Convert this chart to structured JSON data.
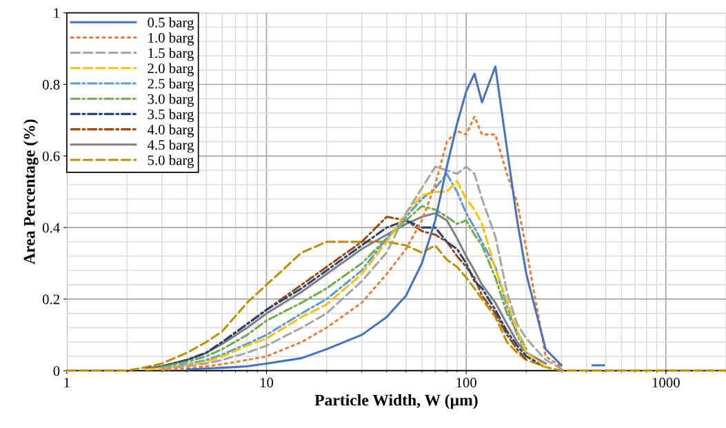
{
  "chart_data": {
    "type": "line",
    "xlabel": "Particle Width, W (µm)",
    "ylabel": "Area Percentage (%)",
    "log": "x",
    "xlim": [
      1,
      2000
    ],
    "xticks": [
      1,
      10,
      100,
      1000
    ],
    "ylim": [
      0,
      1
    ],
    "yticks": [
      0,
      0.2,
      0.4,
      0.6,
      0.8,
      1
    ],
    "grid": true,
    "legend": "top left",
    "marker": "none",
    "x": [
      1,
      2,
      2.5,
      3,
      4,
      5,
      6,
      8,
      10,
      15,
      20,
      30,
      40,
      50,
      60,
      70,
      80,
      90,
      100,
      110,
      120,
      140,
      160,
      180,
      200,
      250,
      300,
      400,
      450,
      500,
      1000,
      2000
    ],
    "series": [
      {
        "name": "0.5 barg",
        "color": "#4472c4",
        "line_style": "solid",
        "x": [
          4,
          5,
          6,
          8,
          10,
          15,
          20,
          30,
          40,
          50,
          60,
          70,
          80,
          90,
          100,
          110,
          120,
          140,
          160,
          180,
          200,
          250,
          300,
          400,
          430,
          490
        ],
        "values": [
          0.003,
          0.006,
          0.008,
          0.012,
          0.02,
          0.035,
          0.06,
          0.1,
          0.15,
          0.21,
          0.3,
          0.42,
          0.57,
          0.69,
          0.78,
          0.83,
          0.75,
          0.85,
          0.62,
          0.42,
          0.27,
          0.06,
          0.015,
          null,
          0.015,
          0.015
        ]
      },
      {
        "name": "1.0 barg",
        "color": "#ed7d31",
        "line_style": "dotted",
        "values": [
          null,
          null,
          null,
          0.002,
          0.006,
          0.012,
          0.018,
          0.03,
          0.04,
          0.08,
          0.12,
          0.19,
          0.27,
          0.34,
          0.42,
          0.52,
          0.64,
          0.67,
          0.66,
          0.71,
          0.66,
          0.66,
          0.55,
          0.47,
          0.34,
          0.04,
          0.01,
          null,
          null,
          null,
          null,
          null
        ]
      },
      {
        "name": "1.5 barg",
        "color": "#a5a5a5",
        "line_style": "dashed",
        "values": [
          null,
          null,
          null,
          0.005,
          0.012,
          0.02,
          0.03,
          0.05,
          0.07,
          0.12,
          0.16,
          0.25,
          0.33,
          0.44,
          0.51,
          0.57,
          0.56,
          0.55,
          0.57,
          0.55,
          0.48,
          0.375,
          0.22,
          0.13,
          0.09,
          0.03,
          0.005,
          null,
          null,
          null,
          null,
          null
        ]
      },
      {
        "name": "2.0 barg",
        "color": "#ffc000",
        "line_style": "dashed",
        "values": [
          null,
          null,
          0.003,
          0.006,
          0.015,
          0.025,
          0.04,
          0.07,
          0.09,
          0.15,
          0.185,
          0.27,
          0.36,
          0.44,
          0.49,
          0.5,
          0.5,
          0.53,
          0.48,
          0.45,
          0.41,
          0.285,
          0.195,
          0.11,
          0.05,
          0.01,
          null,
          null,
          null,
          null,
          null,
          null
        ]
      },
      {
        "name": "2.5 barg",
        "color": "#5b9bd5",
        "line_style": "dashdot",
        "values": [
          null,
          null,
          null,
          0.008,
          0.018,
          0.03,
          0.045,
          0.075,
          0.1,
          0.16,
          0.2,
          0.28,
          0.37,
          0.43,
          0.48,
          0.51,
          0.55,
          0.5,
          0.44,
          0.4,
          0.36,
          0.29,
          0.18,
          0.1,
          0.05,
          null,
          null,
          null,
          null,
          null,
          null,
          null
        ]
      },
      {
        "name": "3.0 barg",
        "color": "#70ad47",
        "line_style": "dashdot",
        "values": [
          null,
          null,
          0.005,
          0.01,
          0.025,
          0.04,
          0.06,
          0.1,
          0.14,
          0.19,
          0.23,
          0.3,
          0.37,
          0.42,
          0.46,
          0.45,
          0.43,
          0.41,
          0.42,
          0.38,
          0.35,
          0.26,
          0.16,
          0.11,
          0.06,
          null,
          null,
          null,
          null,
          null,
          null,
          null
        ]
      },
      {
        "name": "3.5 barg",
        "color": "#264478",
        "line_style": "dashdot",
        "values": [
          null,
          null,
          0.006,
          0.012,
          0.03,
          0.05,
          0.08,
          0.13,
          0.17,
          0.23,
          0.28,
          0.35,
          0.4,
          0.42,
          0.4,
          0.4,
          0.36,
          0.34,
          0.3,
          0.25,
          0.23,
          0.17,
          0.11,
          0.07,
          0.04,
          0.01,
          null,
          null,
          null,
          null,
          null,
          null
        ]
      },
      {
        "name": "4.0 barg",
        "color": "#9e480e",
        "line_style": "dashdot",
        "values": [
          null,
          null,
          0.006,
          0.012,
          0.03,
          0.05,
          0.08,
          0.13,
          0.17,
          0.24,
          0.29,
          0.36,
          0.43,
          0.42,
          0.39,
          0.38,
          0.36,
          0.32,
          0.29,
          0.26,
          0.21,
          0.16,
          0.1,
          0.06,
          0.03,
          null,
          null,
          null,
          null,
          null,
          null,
          null
        ]
      },
      {
        "name": "4.5 barg",
        "color": "#7f7f7f",
        "line_style": "solid",
        "values": [
          null,
          null,
          0.006,
          0.012,
          0.03,
          0.05,
          0.075,
          0.12,
          0.16,
          0.22,
          0.27,
          0.34,
          0.38,
          0.41,
          0.43,
          0.44,
          0.42,
          0.37,
          0.32,
          0.28,
          0.24,
          0.19,
          0.13,
          0.08,
          0.05,
          0.02,
          null,
          null,
          null,
          null,
          null,
          null
        ]
      },
      {
        "name": "5.0 barg",
        "color": "#bf9000",
        "line_style": "dashed",
        "values": [
          0,
          0,
          0.01,
          0.02,
          0.05,
          0.08,
          0.11,
          0.19,
          0.24,
          0.33,
          0.36,
          0.36,
          0.36,
          0.35,
          0.33,
          0.35,
          0.31,
          0.29,
          0.26,
          0.23,
          0.2,
          0.15,
          0.08,
          0.05,
          0.03,
          0.01,
          0,
          0,
          0,
          0,
          0,
          0
        ]
      }
    ]
  }
}
